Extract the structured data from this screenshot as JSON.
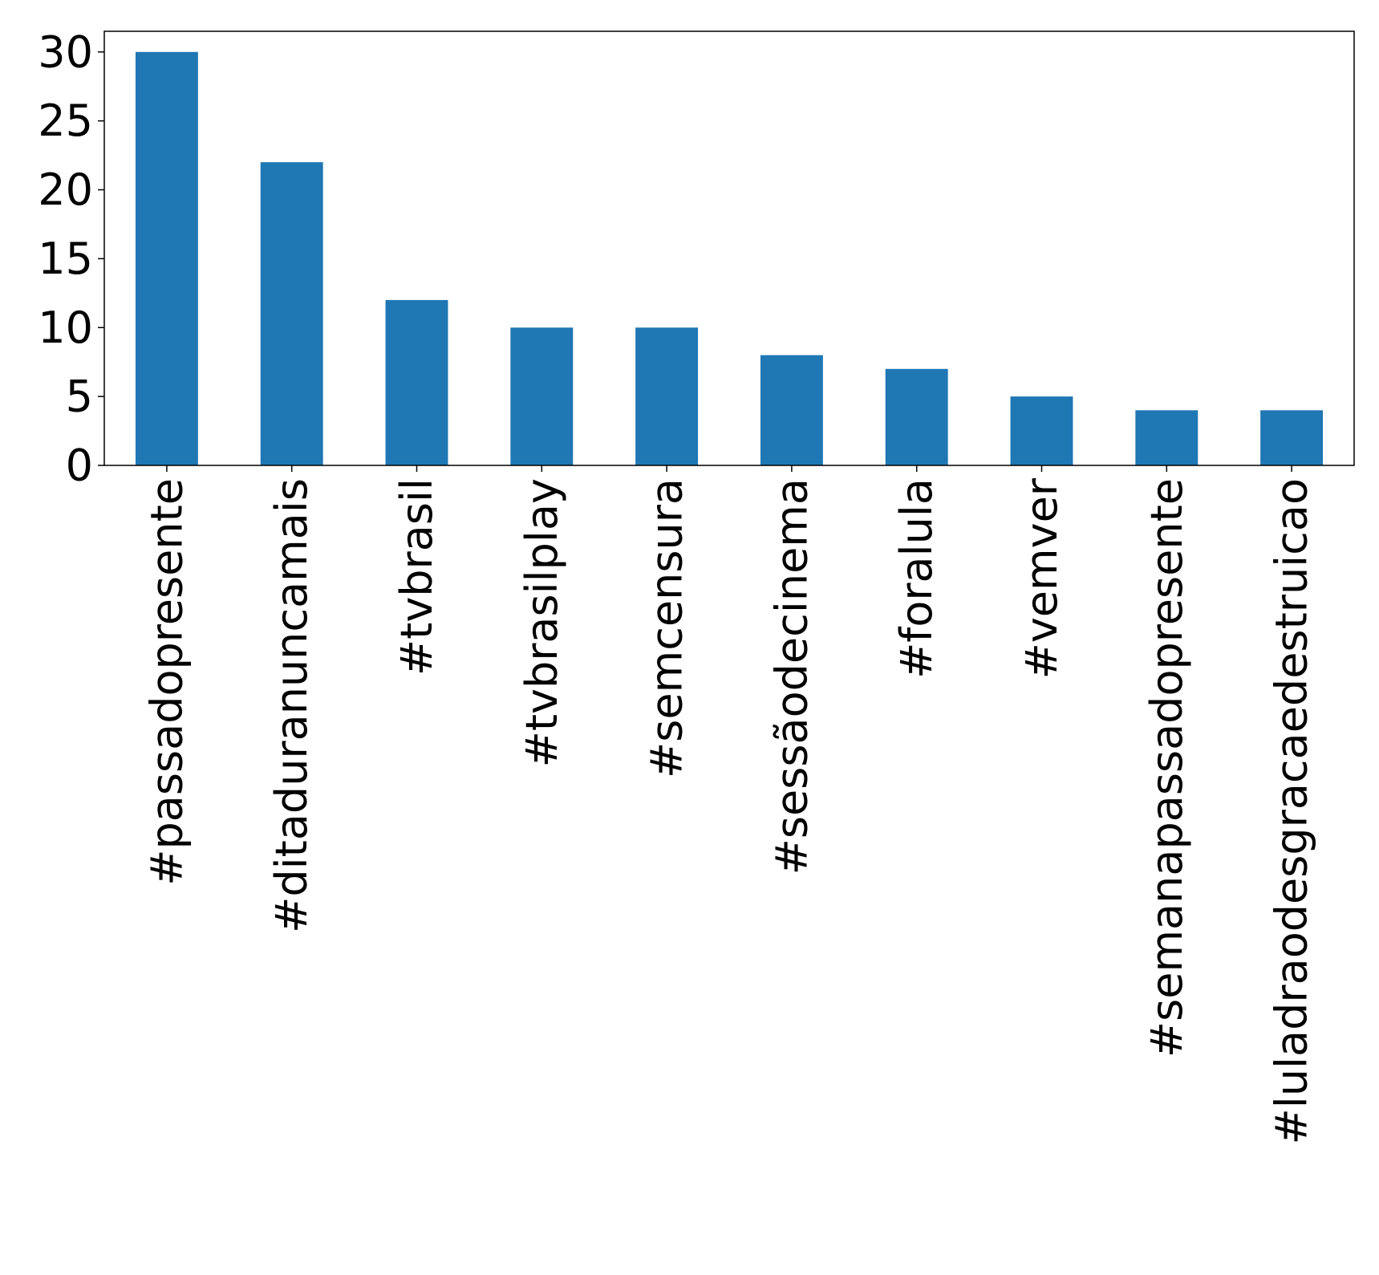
{
  "chart_data": {
    "type": "bar",
    "title": "",
    "xlabel": "",
    "ylabel": "",
    "categories": [
      "#passadopresente",
      "#ditaduranuncamais",
      "#tvbrasil",
      "#tvbrasilplay",
      "#semcensura",
      "#sessãodecinema",
      "#foralula",
      "#vemver",
      "#semanapassadopresente",
      "#luladraodesgracaedestruicao"
    ],
    "values": [
      30,
      22,
      12,
      10,
      10,
      8,
      7,
      5,
      4,
      4
    ],
    "yticks": [
      0,
      5,
      10,
      15,
      20,
      25,
      30
    ],
    "ylim": [
      0,
      31.5
    ],
    "grid": false,
    "legend": "none",
    "bar_color": "#1f77b4"
  }
}
